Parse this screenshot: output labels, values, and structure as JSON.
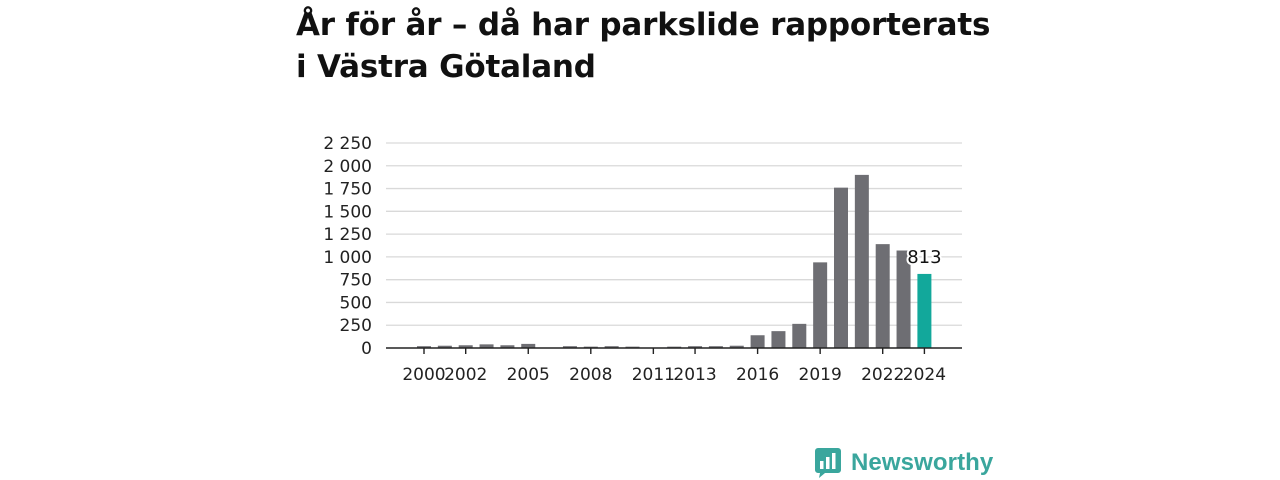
{
  "title_line1": "År för år – då har parkslide rapporterats",
  "title_line2": "i Västra Götaland",
  "brand": {
    "name": "Newsworthy",
    "color": "#3aa69d",
    "icon": "bar-chart-speech-bubble-icon"
  },
  "chart_data": {
    "type": "bar",
    "title": "År för år – då har parkslide rapporterats i Västra Götaland",
    "categories": [
      2000,
      2001,
      2002,
      2003,
      2004,
      2005,
      2006,
      2007,
      2008,
      2009,
      2010,
      2011,
      2012,
      2013,
      2014,
      2015,
      2016,
      2017,
      2018,
      2019,
      2020,
      2021,
      2022,
      2023,
      2024
    ],
    "values": [
      20,
      25,
      30,
      40,
      30,
      45,
      5,
      20,
      15,
      20,
      15,
      5,
      15,
      20,
      20,
      25,
      140,
      185,
      265,
      940,
      1760,
      1900,
      1140,
      1070,
      813
    ],
    "ylim": [
      0,
      2250
    ],
    "yticks": [
      0,
      250,
      500,
      750,
      1000,
      1250,
      1500,
      1750,
      2000,
      2250
    ],
    "ytick_labels": [
      "0",
      "250",
      "500",
      "750",
      "1 000",
      "1 250",
      "1 500",
      "1 750",
      "2 000",
      "2 250"
    ],
    "xtick_labels": [
      {
        "year": 2000,
        "label": "2000"
      },
      {
        "year": 2002,
        "label": "2002"
      },
      {
        "year": 2005,
        "label": "2005"
      },
      {
        "year": 2008,
        "label": "2008"
      },
      {
        "year": 2011,
        "label": "2011"
      },
      {
        "year": 2013,
        "label": "2013"
      },
      {
        "year": 2016,
        "label": "2016"
      },
      {
        "year": 2019,
        "label": "2019"
      },
      {
        "year": 2022,
        "label": "2022"
      },
      {
        "year": 2024,
        "label": "2024"
      }
    ],
    "highlight": {
      "year": 2024,
      "label": "813"
    },
    "grid": true,
    "colors": {
      "bar": "#6e6e73",
      "highlight": "#12a89b",
      "grid": "#d9d9d9",
      "axis": "#222222"
    },
    "xlabel": "",
    "ylabel": ""
  }
}
